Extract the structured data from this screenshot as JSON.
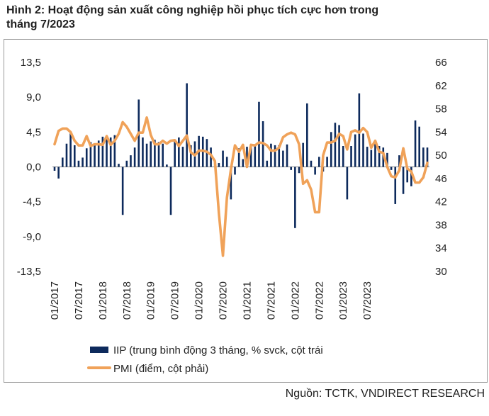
{
  "title": {
    "line1": "Hình 2: Hoạt động sản xuất công nghiệp hồi phục tích cực hơn trong",
    "line2": "tháng 7/2023"
  },
  "source": "Nguồn: TCTK, VNDIRECT RESEARCH",
  "colors": {
    "iip": "#0d2a5c",
    "pmi": "#f0a259",
    "axis": "#888888"
  },
  "chart_data": {
    "type": "bar+line",
    "title": "Hình 2: Hoạt động sản xuất công nghiệp hồi phục tích cực hơn trong tháng 7/2023",
    "y_left": {
      "ticks": [
        "13,5",
        "9,0",
        "4,5",
        "0,0",
        "-4,5",
        "-9,0",
        "-13,5"
      ],
      "range": [
        -13.5,
        13.5
      ]
    },
    "y_right": {
      "ticks": [
        "66",
        "62",
        "58",
        "54",
        "50",
        "46",
        "42",
        "38",
        "34",
        "30"
      ],
      "range": [
        30,
        66
      ]
    },
    "x_ticks": [
      "01/2017",
      "07/2017",
      "01/2018",
      "07/2018",
      "01/2019",
      "07/2019",
      "01/2020",
      "07/2020",
      "01/2021",
      "07/2021",
      "01/2022",
      "07/2022",
      "01/2023",
      "07/2023"
    ],
    "legend": {
      "iip": "IIP (trung bình động 3 tháng, % svck, cột trái",
      "pmi": "PMI (điểm, cột phải)"
    },
    "series": [
      {
        "name": "IIP",
        "axis": "left",
        "type": "bar",
        "values": [
          -0.5,
          -1.5,
          1.2,
          3.0,
          4.4,
          2.8,
          0.8,
          1.2,
          2.4,
          3.2,
          2.8,
          3.4,
          3.9,
          3.8,
          3.8,
          4.1,
          0.4,
          -6.2,
          0.8,
          1.5,
          2.5,
          8.7,
          3.8,
          3.0,
          3.3,
          3.5,
          3.2,
          3.0,
          0.3,
          -6.2,
          3.4,
          3.8,
          2.6,
          10.8,
          2.8,
          3.3,
          4.0,
          3.9,
          3.6,
          2.5,
          0.5,
          0.5,
          2.1,
          1.3,
          -4.2,
          -1.0,
          2.4,
          1.0,
          2.6,
          2.9,
          2.7,
          8.4,
          5.9,
          0.8,
          3.0,
          2.8,
          2.8,
          2.1,
          2.9,
          -0.4,
          -7.9,
          -0.8,
          3.1,
          8.2,
          0.8,
          -1.0,
          1.3,
          -0.6,
          1.3,
          4.5,
          5.7,
          5.4,
          2.7,
          -4.2,
          2.7,
          4.2,
          9.5,
          4.3,
          2.6,
          2.2,
          3.3,
          2.7,
          2.5,
          1.8,
          -0.4,
          -4.8,
          1.5,
          -3.5,
          -2.0,
          -2.5,
          6.0,
          5.2,
          2.5,
          2.5
        ]
      },
      {
        "name": "PMI",
        "axis": "right",
        "type": "line",
        "values": [
          51.9,
          54.2,
          54.6,
          54.6,
          54.0,
          52.5,
          51.7,
          51.7,
          53.3,
          51.6,
          51.9,
          51.9,
          51.8,
          53.3,
          51.8,
          52.5,
          53.7,
          55.7,
          54.9,
          53.7,
          52.5,
          53.9,
          53.9,
          56.5,
          53.5,
          51.9,
          51.9,
          52.5,
          52.0,
          52.5,
          52.6,
          51.6,
          52.5,
          53.4,
          50.5,
          50.0,
          50.8,
          50.8,
          50.6,
          50.1,
          49.0,
          40.0,
          32.7,
          42.7,
          47.6,
          51.7,
          50.6,
          51.8,
          48.0,
          51.8,
          51.7,
          52.2,
          52.1,
          51.7,
          50.8,
          50.8,
          51.3,
          53.1,
          53.6,
          53.9,
          53.6,
          51.9,
          45.1,
          45.7,
          44.1,
          40.2,
          40.2,
          50.0,
          52.2,
          52.2,
          52.5,
          53.7,
          53.3,
          51.0,
          54.0,
          54.3,
          53.9,
          54.7,
          54.0,
          51.3,
          52.5,
          50.6,
          50.4,
          48.0,
          46.4,
          46.2,
          47.4,
          51.2,
          47.7,
          47.2,
          45.3,
          45.3,
          46.2,
          48.7
        ]
      }
    ]
  }
}
